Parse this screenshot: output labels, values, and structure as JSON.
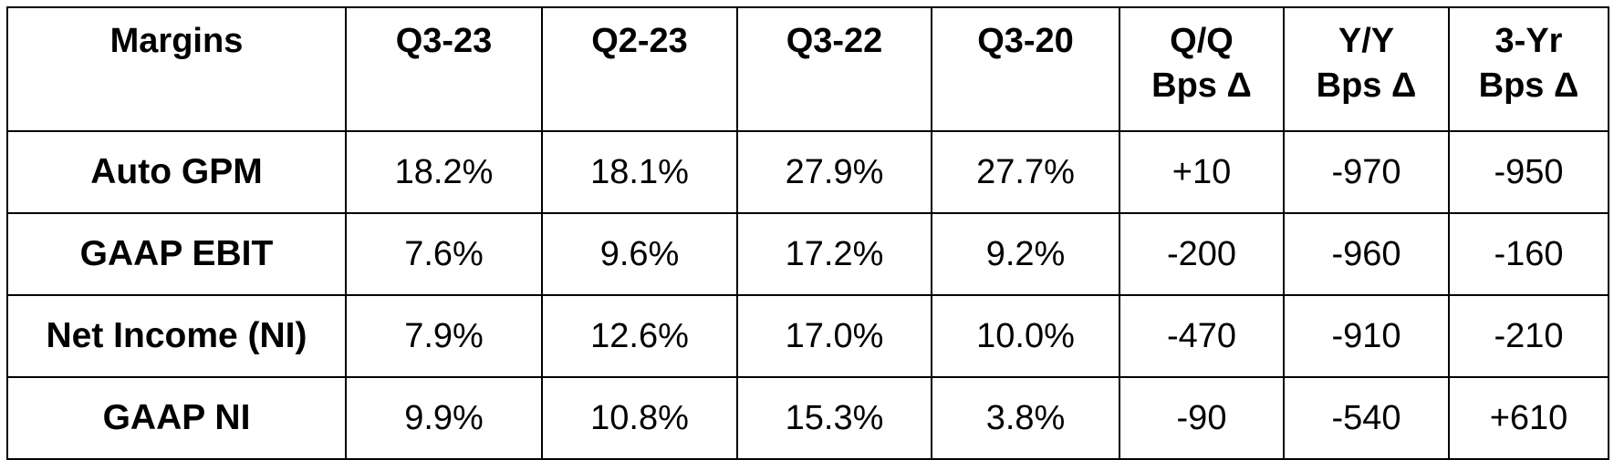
{
  "table": {
    "header": [
      "Margins",
      "Q3-23",
      "Q2-23",
      "Q3-22",
      "Q3-20",
      "Q/Q\nBps Δ",
      "Y/Y\nBps Δ",
      "3-Yr\nBps Δ"
    ],
    "rows": [
      [
        "Auto GPM",
        "18.2%",
        "18.1%",
        "27.9%",
        "27.7%",
        "+10",
        "-970",
        "-950"
      ],
      [
        "GAAP EBIT",
        "7.6%",
        "9.6%",
        "17.2%",
        "9.2%",
        "-200",
        "-960",
        "-160"
      ],
      [
        "Net Income (NI)",
        "7.9%",
        "12.6%",
        "17.0%",
        "10.0%",
        "-470",
        "-910",
        "-210"
      ],
      [
        "GAAP NI",
        "9.9%",
        "10.8%",
        "15.3%",
        "3.8%",
        "-90",
        "-540",
        "+610"
      ]
    ]
  }
}
